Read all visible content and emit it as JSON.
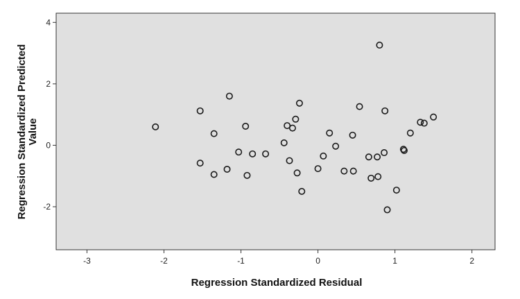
{
  "chart_data": {
    "type": "scatter",
    "title": "",
    "xlabel": "Regression Standardized Residual",
    "ylabel_lines": [
      "Regression Standardized Predicted",
      "Value"
    ],
    "xlim": [
      -3.4,
      2.3
    ],
    "ylim": [
      -3.4,
      4.3
    ],
    "xticks": [
      -3,
      -2,
      -1,
      0,
      1,
      2
    ],
    "yticks": [
      -2,
      0,
      2,
      4
    ],
    "xtick_labels": [
      "-3",
      "-2",
      "-1",
      "0",
      "1",
      "2"
    ],
    "ytick_labels": [
      "-2",
      "0",
      "2",
      "4"
    ],
    "grid": false,
    "plot_background": "#e0e0e0",
    "marker_color": "#1a1a1a",
    "points": [
      {
        "x": -2.11,
        "y": 0.6
      },
      {
        "x": -1.53,
        "y": 1.12
      },
      {
        "x": -1.53,
        "y": -0.58
      },
      {
        "x": -1.35,
        "y": 0.38
      },
      {
        "x": -1.35,
        "y": -0.95
      },
      {
        "x": -1.18,
        "y": -0.78
      },
      {
        "x": -1.15,
        "y": 1.6
      },
      {
        "x": -1.03,
        "y": -0.22
      },
      {
        "x": -0.94,
        "y": 0.62
      },
      {
        "x": -0.92,
        "y": -0.98
      },
      {
        "x": -0.85,
        "y": -0.28
      },
      {
        "x": -0.68,
        "y": -0.28
      },
      {
        "x": -0.44,
        "y": 0.08
      },
      {
        "x": -0.4,
        "y": 0.64
      },
      {
        "x": -0.37,
        "y": -0.5
      },
      {
        "x": -0.33,
        "y": 0.56
      },
      {
        "x": -0.29,
        "y": 0.85
      },
      {
        "x": -0.27,
        "y": -0.9
      },
      {
        "x": -0.24,
        "y": 1.37
      },
      {
        "x": -0.21,
        "y": -1.5
      },
      {
        "x": 0.0,
        "y": -0.76
      },
      {
        "x": 0.07,
        "y": -0.35
      },
      {
        "x": 0.15,
        "y": 0.4
      },
      {
        "x": 0.23,
        "y": -0.03
      },
      {
        "x": 0.34,
        "y": -0.84
      },
      {
        "x": 0.45,
        "y": 0.33
      },
      {
        "x": 0.46,
        "y": -0.84
      },
      {
        "x": 0.54,
        "y": 1.26
      },
      {
        "x": 0.66,
        "y": -0.38
      },
      {
        "x": 0.69,
        "y": -1.07
      },
      {
        "x": 0.77,
        "y": -0.38
      },
      {
        "x": 0.78,
        "y": -1.02
      },
      {
        "x": 0.8,
        "y": 3.26
      },
      {
        "x": 0.86,
        "y": -0.24
      },
      {
        "x": 0.87,
        "y": 1.12
      },
      {
        "x": 0.9,
        "y": -2.1
      },
      {
        "x": 1.02,
        "y": -1.46
      },
      {
        "x": 1.11,
        "y": -0.13
      },
      {
        "x": 1.12,
        "y": -0.17
      },
      {
        "x": 1.2,
        "y": 0.4
      },
      {
        "x": 1.33,
        "y": 0.75
      },
      {
        "x": 1.38,
        "y": 0.72
      },
      {
        "x": 1.5,
        "y": 0.92
      }
    ]
  }
}
